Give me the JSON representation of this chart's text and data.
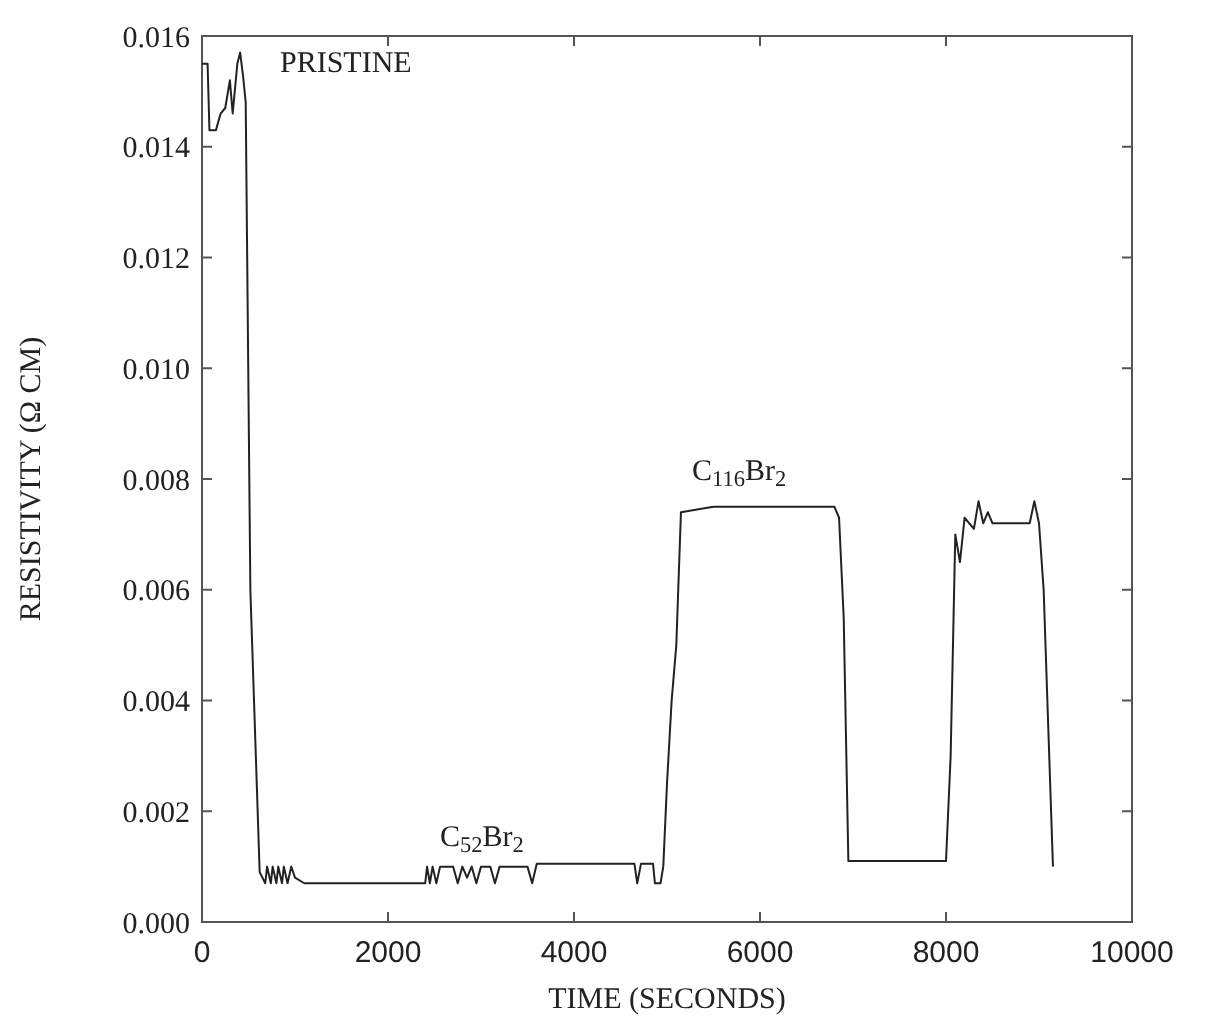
{
  "chart_data": {
    "type": "line",
    "xlabel": "TIME (SECONDS)",
    "ylabel": "RESISTIVITY (Ω CM)",
    "xlim": [
      0,
      10000
    ],
    "ylim": [
      0,
      0.016
    ],
    "xticks": [
      0,
      2000,
      4000,
      6000,
      8000,
      10000
    ],
    "yticks": [
      {
        "value": 0,
        "label": "0.000"
      },
      {
        "value": 0.002,
        "label": "0.002"
      },
      {
        "value": 0.004,
        "label": "0.004"
      },
      {
        "value": 0.006,
        "label": "0.006"
      },
      {
        "value": 0.008,
        "label": "0.008"
      },
      {
        "value": 0.01,
        "label": "0.010"
      },
      {
        "value": 0.012,
        "label": "0.012"
      },
      {
        "value": 0.014,
        "label": "0.014"
      },
      {
        "value": 0.016,
        "label": "0.016"
      }
    ],
    "grid": false,
    "marker": "none",
    "line_style": "solid",
    "series": [
      {
        "color": "#222222",
        "x": [
          0,
          60,
          80,
          150,
          200,
          250,
          300,
          330,
          380,
          410,
          440,
          470,
          520,
          620,
          680,
          700,
          740,
          760,
          800,
          820,
          860,
          880,
          920,
          960,
          1000,
          1100,
          2400,
          2420,
          2450,
          2480,
          2520,
          2560,
          2600,
          2700,
          2750,
          2800,
          2850,
          2900,
          2950,
          3000,
          3100,
          3150,
          3200,
          3500,
          3550,
          3600,
          4650,
          4680,
          4720,
          4850,
          4870,
          4930,
          4960,
          5000,
          5050,
          5100,
          5150,
          5500,
          6800,
          6850,
          6900,
          6950,
          8000,
          8050,
          8100,
          8150,
          8200,
          8300,
          8350,
          8400,
          8450,
          8500,
          8550,
          8900,
          8950,
          9000,
          9050,
          9100,
          9150
        ],
        "values": [
          0.0155,
          0.0155,
          0.0143,
          0.0143,
          0.0146,
          0.0147,
          0.0152,
          0.0146,
          0.0155,
          0.0157,
          0.0153,
          0.0148,
          0.006,
          0.0009,
          0.0007,
          0.001,
          0.0007,
          0.001,
          0.0007,
          0.001,
          0.0007,
          0.001,
          0.0007,
          0.001,
          0.0008,
          0.0007,
          0.0007,
          0.001,
          0.0007,
          0.001,
          0.0007,
          0.001,
          0.001,
          0.001,
          0.0007,
          0.001,
          0.0008,
          0.001,
          0.0007,
          0.001,
          0.001,
          0.0007,
          0.001,
          0.001,
          0.0007,
          0.00105,
          0.00105,
          0.0007,
          0.00105,
          0.00105,
          0.0007,
          0.0007,
          0.001,
          0.0025,
          0.004,
          0.005,
          0.0074,
          0.0075,
          0.0075,
          0.0073,
          0.0055,
          0.0011,
          0.0011,
          0.003,
          0.007,
          0.0065,
          0.0073,
          0.0071,
          0.0076,
          0.0072,
          0.0074,
          0.0072,
          0.0072,
          0.0072,
          0.0076,
          0.0072,
          0.006,
          0.0035,
          0.001
        ]
      }
    ],
    "annotations": [
      "PRISTINE",
      "C$_{52}$Br$_{2}$",
      "C$_{116}$Br$_{2}$"
    ]
  }
}
